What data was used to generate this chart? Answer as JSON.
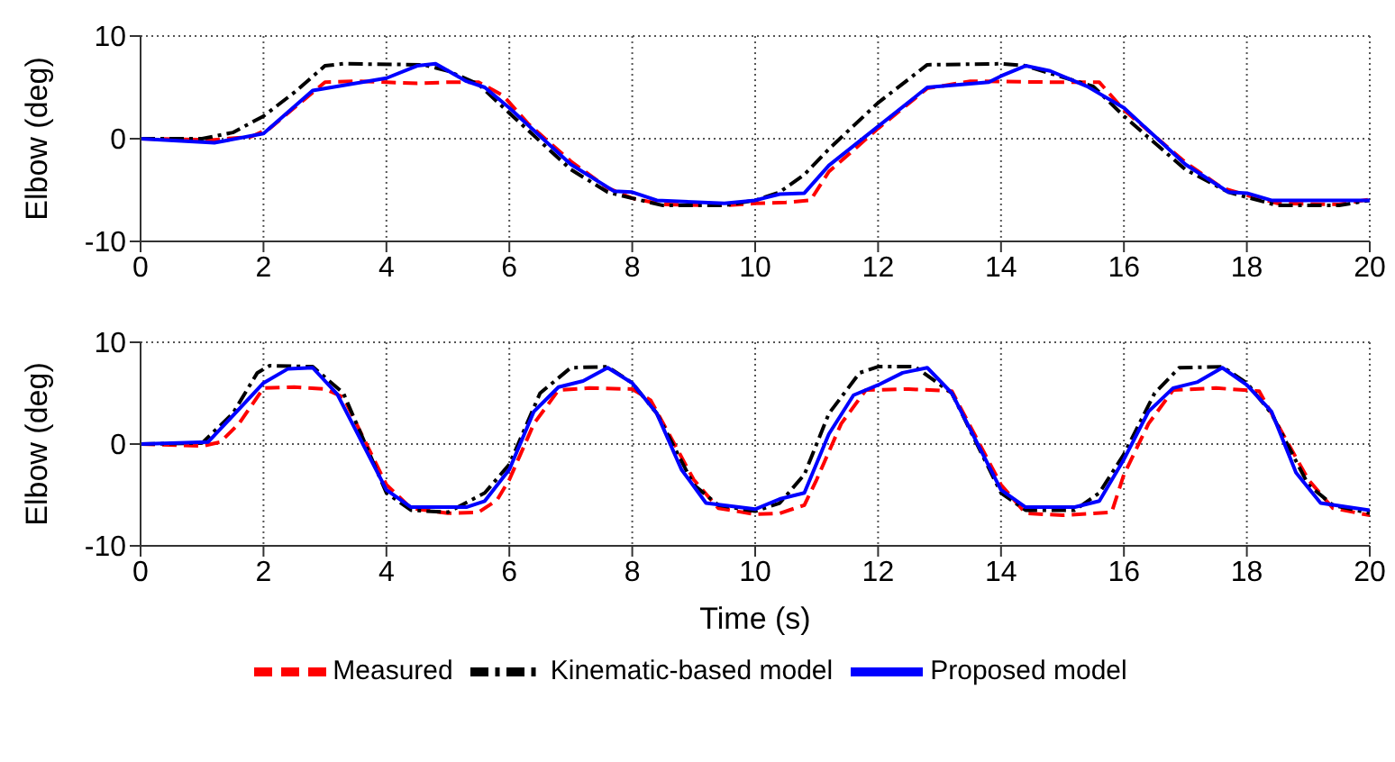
{
  "chart_data": [
    {
      "type": "line",
      "ylabel": "Elbow (deg)",
      "xlim": [
        0,
        20
      ],
      "xticks": [
        0,
        2,
        4,
        6,
        8,
        10,
        12,
        14,
        16,
        18,
        20
      ],
      "ylim": [
        -10,
        10
      ],
      "yticks": [
        -10,
        0,
        10
      ],
      "grid": true,
      "legend": false,
      "series": [
        {
          "color": "#ff0000",
          "line_style": "dashed",
          "x": [
            0,
            1.2,
            1.8,
            2.1,
            2.8,
            3,
            3.5,
            4,
            4.5,
            5,
            5.5,
            5.9,
            6.3,
            7,
            7.6,
            8,
            8.5,
            9.5,
            10,
            10.5,
            10.9,
            11.2,
            12,
            12.8,
            13.5,
            15,
            15.6,
            16,
            17,
            17.6,
            18,
            18.5,
            19.5,
            20
          ],
          "values": [
            0,
            -0.1,
            0.2,
            1,
            4.5,
            5.5,
            5.6,
            5.5,
            5.4,
            5.5,
            5.5,
            4.2,
            1.5,
            -2.2,
            -4.8,
            -5.8,
            -6.4,
            -6.5,
            -6.3,
            -6.2,
            -6,
            -3.2,
            1,
            4.9,
            5.6,
            5.5,
            5.5,
            2.8,
            -2.3,
            -4.8,
            -5.5,
            -6.3,
            -6.4,
            -5.9
          ]
        },
        {
          "color": "#000000",
          "line_style": "dashdot",
          "x": [
            0,
            1,
            1.5,
            2,
            2.5,
            3,
            3.3,
            4.6,
            5,
            5.5,
            6,
            7,
            7.6,
            8,
            8.5,
            9.5,
            10,
            10.4,
            10.8,
            11.2,
            12,
            12.8,
            14,
            14.4,
            15,
            15.5,
            16,
            17,
            17.7,
            18,
            18.5,
            19.5,
            20
          ],
          "values": [
            0,
            0,
            0.6,
            2.2,
            4.5,
            7.1,
            7.3,
            7.2,
            6.6,
            5.3,
            2.5,
            -3,
            -5.2,
            -5.8,
            -6.5,
            -6.5,
            -6,
            -5.2,
            -3.5,
            -1,
            3.5,
            7.2,
            7.3,
            7.1,
            6,
            5.1,
            2.2,
            -3,
            -5.2,
            -5.7,
            -6.5,
            -6.5,
            -6
          ]
        },
        {
          "color": "#0000ff",
          "line_style": "solid",
          "x": [
            0,
            1.2,
            2,
            2.8,
            4,
            4.5,
            4.8,
            5.3,
            5.6,
            6,
            7,
            7.7,
            8,
            8.4,
            9.5,
            10,
            10.4,
            10.8,
            11.2,
            12,
            12.8,
            13.8,
            14,
            14.4,
            14.8,
            15.4,
            16,
            17,
            17.7,
            18,
            18.4,
            20
          ],
          "values": [
            0,
            -0.4,
            0.5,
            4.7,
            5.9,
            7.1,
            7.3,
            5.6,
            5,
            3,
            -2.5,
            -5.1,
            -5.2,
            -6,
            -6.3,
            -6,
            -5.4,
            -5.3,
            -2.6,
            1.2,
            5,
            5.5,
            6.1,
            7.1,
            6.6,
            5.1,
            3,
            -2.5,
            -5.2,
            -5.3,
            -6,
            -6
          ]
        }
      ]
    },
    {
      "type": "line",
      "ylabel": "Elbow (deg)",
      "xlabel": "Time (s)",
      "xlim": [
        0,
        20
      ],
      "xticks": [
        0,
        2,
        4,
        6,
        8,
        10,
        12,
        14,
        16,
        18,
        20
      ],
      "ylim": [
        -10,
        10
      ],
      "yticks": [
        -10,
        0,
        10
      ],
      "grid": true,
      "legend": "bottom",
      "series": [
        {
          "name": "Measured",
          "color": "#ff0000",
          "line_style": "dashed",
          "x": [
            0,
            1,
            1.3,
            1.6,
            2,
            2.5,
            3,
            3.3,
            4,
            4.4,
            5,
            5.5,
            5.8,
            6,
            6.4,
            6.8,
            7.3,
            8,
            8.3,
            9,
            9.4,
            10,
            10.4,
            10.8,
            11,
            11.4,
            11.8,
            12.5,
            13.2,
            14,
            14.4,
            15,
            15.8,
            16,
            16.4,
            16.8,
            17.5,
            18.2,
            19,
            19.4,
            20
          ],
          "values": [
            0,
            -0.2,
            0.2,
            2,
            5.5,
            5.6,
            5.4,
            4.6,
            -4,
            -6.3,
            -6.8,
            -6.7,
            -5.5,
            -3.5,
            2,
            5.3,
            5.5,
            5.4,
            4.3,
            -3.5,
            -6.3,
            -6.9,
            -6.8,
            -6,
            -3.5,
            2,
            5.3,
            5.4,
            5.2,
            -4,
            -6.8,
            -7,
            -6.7,
            -3,
            2,
            5.3,
            5.5,
            5.2,
            -3.5,
            -6.3,
            -7
          ]
        },
        {
          "name": "Kinematic-based model",
          "color": "#000000",
          "line_style": "dashdot",
          "x": [
            0,
            1,
            1.5,
            1.9,
            2.1,
            2.8,
            3.3,
            4,
            4.4,
            5,
            5.6,
            6,
            6.5,
            7,
            7.6,
            8,
            8.4,
            9,
            9.4,
            10,
            10.4,
            10.8,
            11.2,
            11.7,
            12,
            12.6,
            13.2,
            14,
            14.4,
            15.2,
            15.6,
            16,
            16.5,
            16.9,
            17.6,
            18,
            18.4,
            19,
            19.4,
            20
          ],
          "values": [
            0,
            0.1,
            3,
            7,
            7.7,
            7.6,
            5,
            -4.8,
            -6.5,
            -6.7,
            -4.8,
            -2,
            5,
            7.5,
            7.6,
            6,
            3,
            -4,
            -6,
            -6.6,
            -5.8,
            -3,
            3,
            7,
            7.6,
            7.6,
            5,
            -4.8,
            -6.5,
            -6.5,
            -4.8,
            -1,
            5,
            7.5,
            7.6,
            6,
            3,
            -4,
            -6,
            -6.8
          ]
        },
        {
          "name": "Proposed model",
          "color": "#0000ff",
          "line_style": "solid",
          "x": [
            0,
            1.1,
            2,
            2.4,
            2.8,
            3.2,
            4,
            4.4,
            5.3,
            5.6,
            6,
            6.4,
            6.8,
            7.2,
            7.6,
            8,
            8.4,
            8.8,
            9.2,
            10,
            10.4,
            10.8,
            11.2,
            11.6,
            12,
            12.4,
            12.8,
            13.2,
            14,
            14.4,
            15.2,
            15.6,
            16,
            16.4,
            16.8,
            17.2,
            17.6,
            18,
            18.4,
            18.8,
            19.2,
            20
          ],
          "values": [
            0,
            0.2,
            6,
            7.4,
            7.5,
            4.9,
            -4.5,
            -6.2,
            -6.2,
            -5.6,
            -2.5,
            3.2,
            5.6,
            6.2,
            7.5,
            6,
            3,
            -2.5,
            -5.8,
            -6.4,
            -5.4,
            -4.8,
            1,
            4.8,
            5.8,
            7,
            7.5,
            5,
            -4.5,
            -6.2,
            -6.2,
            -5.6,
            -1.5,
            3.2,
            5.5,
            6.1,
            7.5,
            5.8,
            3.2,
            -2.8,
            -5.8,
            -6.5
          ]
        }
      ]
    }
  ]
}
